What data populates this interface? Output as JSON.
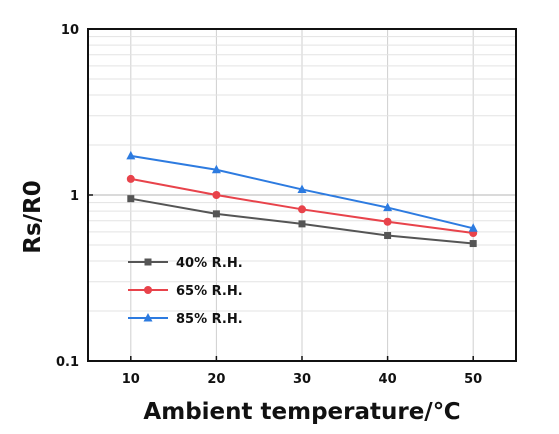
{
  "chart_data": {
    "type": "line",
    "title": "",
    "xlabel": "Ambient temperature/℃",
    "ylabel": "Rs/R0",
    "x": [
      10,
      20,
      30,
      40,
      50
    ],
    "xlim": [
      5,
      55
    ],
    "xticks": [
      "10",
      "20",
      "30",
      "40",
      "50"
    ],
    "yscale": "log",
    "ylim": [
      0.1,
      10
    ],
    "yticks": [
      "0.1",
      "1",
      "10"
    ],
    "grid": true,
    "legend_position": "bottom-left",
    "series": [
      {
        "name": "40% R.H.",
        "color": "#555555",
        "marker": "square",
        "values": [
          0.95,
          0.77,
          0.67,
          0.57,
          0.51
        ]
      },
      {
        "name": "65% R.H.",
        "color": "#e8434b",
        "marker": "circle",
        "values": [
          1.25,
          1.0,
          0.82,
          0.69,
          0.59
        ]
      },
      {
        "name": "85% R.H.",
        "color": "#2d7be0",
        "marker": "triangle",
        "values": [
          1.72,
          1.42,
          1.08,
          0.84,
          0.63
        ]
      }
    ]
  }
}
